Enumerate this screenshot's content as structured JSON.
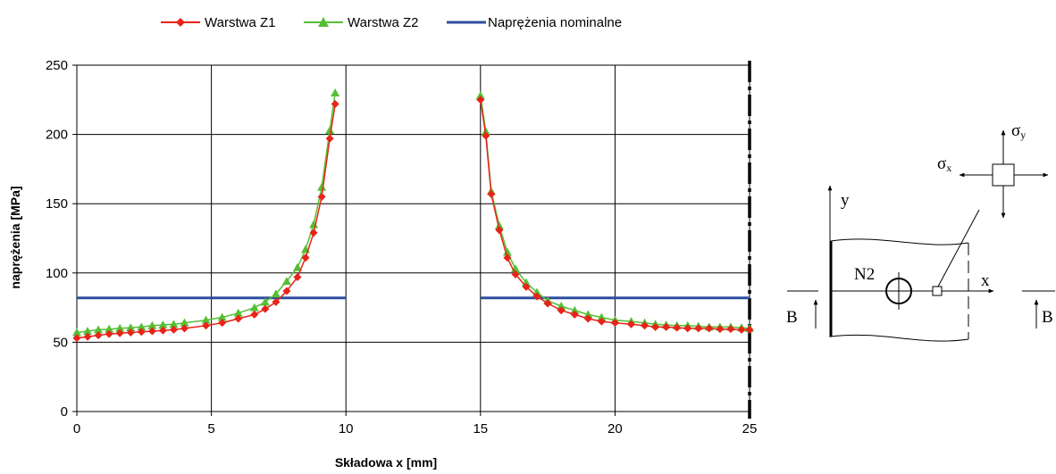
{
  "chart_data": {
    "type": "line",
    "xlabel": "Składowa x [mm]",
    "ylabel": "naprężenia [MPa]",
    "xlim": [
      0,
      25
    ],
    "ylim": [
      0,
      250
    ],
    "xticks": [
      "0",
      "5",
      "10",
      "15",
      "20",
      "25"
    ],
    "yticks": [
      "0",
      "50",
      "100",
      "150",
      "200",
      "250"
    ],
    "grid": true,
    "legend_position": "top",
    "series": [
      {
        "name": "Warstwa Z1",
        "color": "#e8231a",
        "marker": "diamond",
        "segments": [
          [
            [
              0,
              53
            ],
            [
              0.4,
              54
            ],
            [
              0.8,
              55
            ],
            [
              1.2,
              56
            ],
            [
              1.6,
              56.5
            ],
            [
              2.0,
              57
            ],
            [
              2.4,
              57.5
            ],
            [
              2.8,
              58
            ],
            [
              3.2,
              58.5
            ],
            [
              3.6,
              59
            ],
            [
              4.0,
              60
            ],
            [
              4.8,
              62
            ],
            [
              5.4,
              64
            ],
            [
              6.0,
              67
            ],
            [
              6.6,
              70
            ],
            [
              7.0,
              74
            ],
            [
              7.4,
              79
            ],
            [
              7.8,
              87
            ],
            [
              8.2,
              97
            ],
            [
              8.5,
              111
            ],
            [
              8.8,
              129
            ],
            [
              9.1,
              155
            ],
            [
              9.4,
              197
            ],
            [
              9.6,
              222
            ]
          ],
          [
            [
              15.0,
              225
            ],
            [
              15.2,
              199
            ],
            [
              15.4,
              157
            ],
            [
              15.7,
              131
            ],
            [
              16.0,
              111
            ],
            [
              16.3,
              99
            ],
            [
              16.7,
              90
            ],
            [
              17.1,
              83
            ],
            [
              17.5,
              78
            ],
            [
              18.0,
              73
            ],
            [
              18.5,
              70
            ],
            [
              19.0,
              67
            ],
            [
              19.5,
              65
            ],
            [
              20.0,
              64
            ],
            [
              20.6,
              63
            ],
            [
              21.1,
              62
            ],
            [
              21.5,
              61
            ],
            [
              21.9,
              61
            ],
            [
              22.3,
              60.5
            ],
            [
              22.7,
              60
            ],
            [
              23.1,
              60
            ],
            [
              23.5,
              60
            ],
            [
              23.9,
              59.5
            ],
            [
              24.3,
              59.5
            ],
            [
              24.7,
              59
            ],
            [
              25.0,
              59
            ]
          ]
        ]
      },
      {
        "name": "Warstwa Z2",
        "color": "#55bf33",
        "marker": "triangle",
        "segments": [
          [
            [
              0,
              57
            ],
            [
              0.4,
              58
            ],
            [
              0.8,
              59
            ],
            [
              1.2,
              59.5
            ],
            [
              1.6,
              60
            ],
            [
              2.0,
              60.5
            ],
            [
              2.4,
              61
            ],
            [
              2.8,
              62
            ],
            [
              3.2,
              62.5
            ],
            [
              3.6,
              63
            ],
            [
              4.0,
              64
            ],
            [
              4.8,
              66
            ],
            [
              5.4,
              68
            ],
            [
              6.0,
              71
            ],
            [
              6.6,
              75
            ],
            [
              7.0,
              79
            ],
            [
              7.4,
              85
            ],
            [
              7.8,
              94
            ],
            [
              8.2,
              104
            ],
            [
              8.5,
              117
            ],
            [
              8.8,
              135
            ],
            [
              9.1,
              162
            ],
            [
              9.4,
              203
            ],
            [
              9.6,
              230
            ]
          ],
          [
            [
              15.0,
              228
            ],
            [
              15.2,
              202
            ],
            [
              15.4,
              159
            ],
            [
              15.7,
              134
            ],
            [
              16.0,
              115
            ],
            [
              16.3,
              103
            ],
            [
              16.7,
              93
            ],
            [
              17.1,
              86
            ],
            [
              17.5,
              80
            ],
            [
              18.0,
              76
            ],
            [
              18.5,
              73
            ],
            [
              19.0,
              70
            ],
            [
              19.5,
              68
            ],
            [
              20.0,
              66
            ],
            [
              20.6,
              65
            ],
            [
              21.1,
              64
            ],
            [
              21.5,
              63
            ],
            [
              21.9,
              62.5
            ],
            [
              22.3,
              62
            ],
            [
              22.7,
              62
            ],
            [
              23.1,
              61.5
            ],
            [
              23.5,
              61
            ],
            [
              23.9,
              61
            ],
            [
              24.3,
              61
            ],
            [
              24.7,
              60.5
            ],
            [
              25.0,
              60
            ]
          ]
        ]
      },
      {
        "name": "Naprężenia nominalne",
        "color": "#2e4d9e",
        "marker": "none",
        "segments": [
          [
            [
              0,
              82
            ],
            [
              10,
              82
            ]
          ],
          [
            [
              15,
              82
            ],
            [
              25,
              82
            ]
          ]
        ]
      }
    ],
    "annotation": "vertical dash-dot line at x = 25"
  },
  "diagram": {
    "axis_y": "y",
    "axis_x": "x",
    "hole_label": "N2",
    "section_left": "B",
    "section_right": "B",
    "stress_x": "σ",
    "stress_x_sub": "x",
    "stress_y": "σ",
    "stress_y_sub": "y"
  }
}
